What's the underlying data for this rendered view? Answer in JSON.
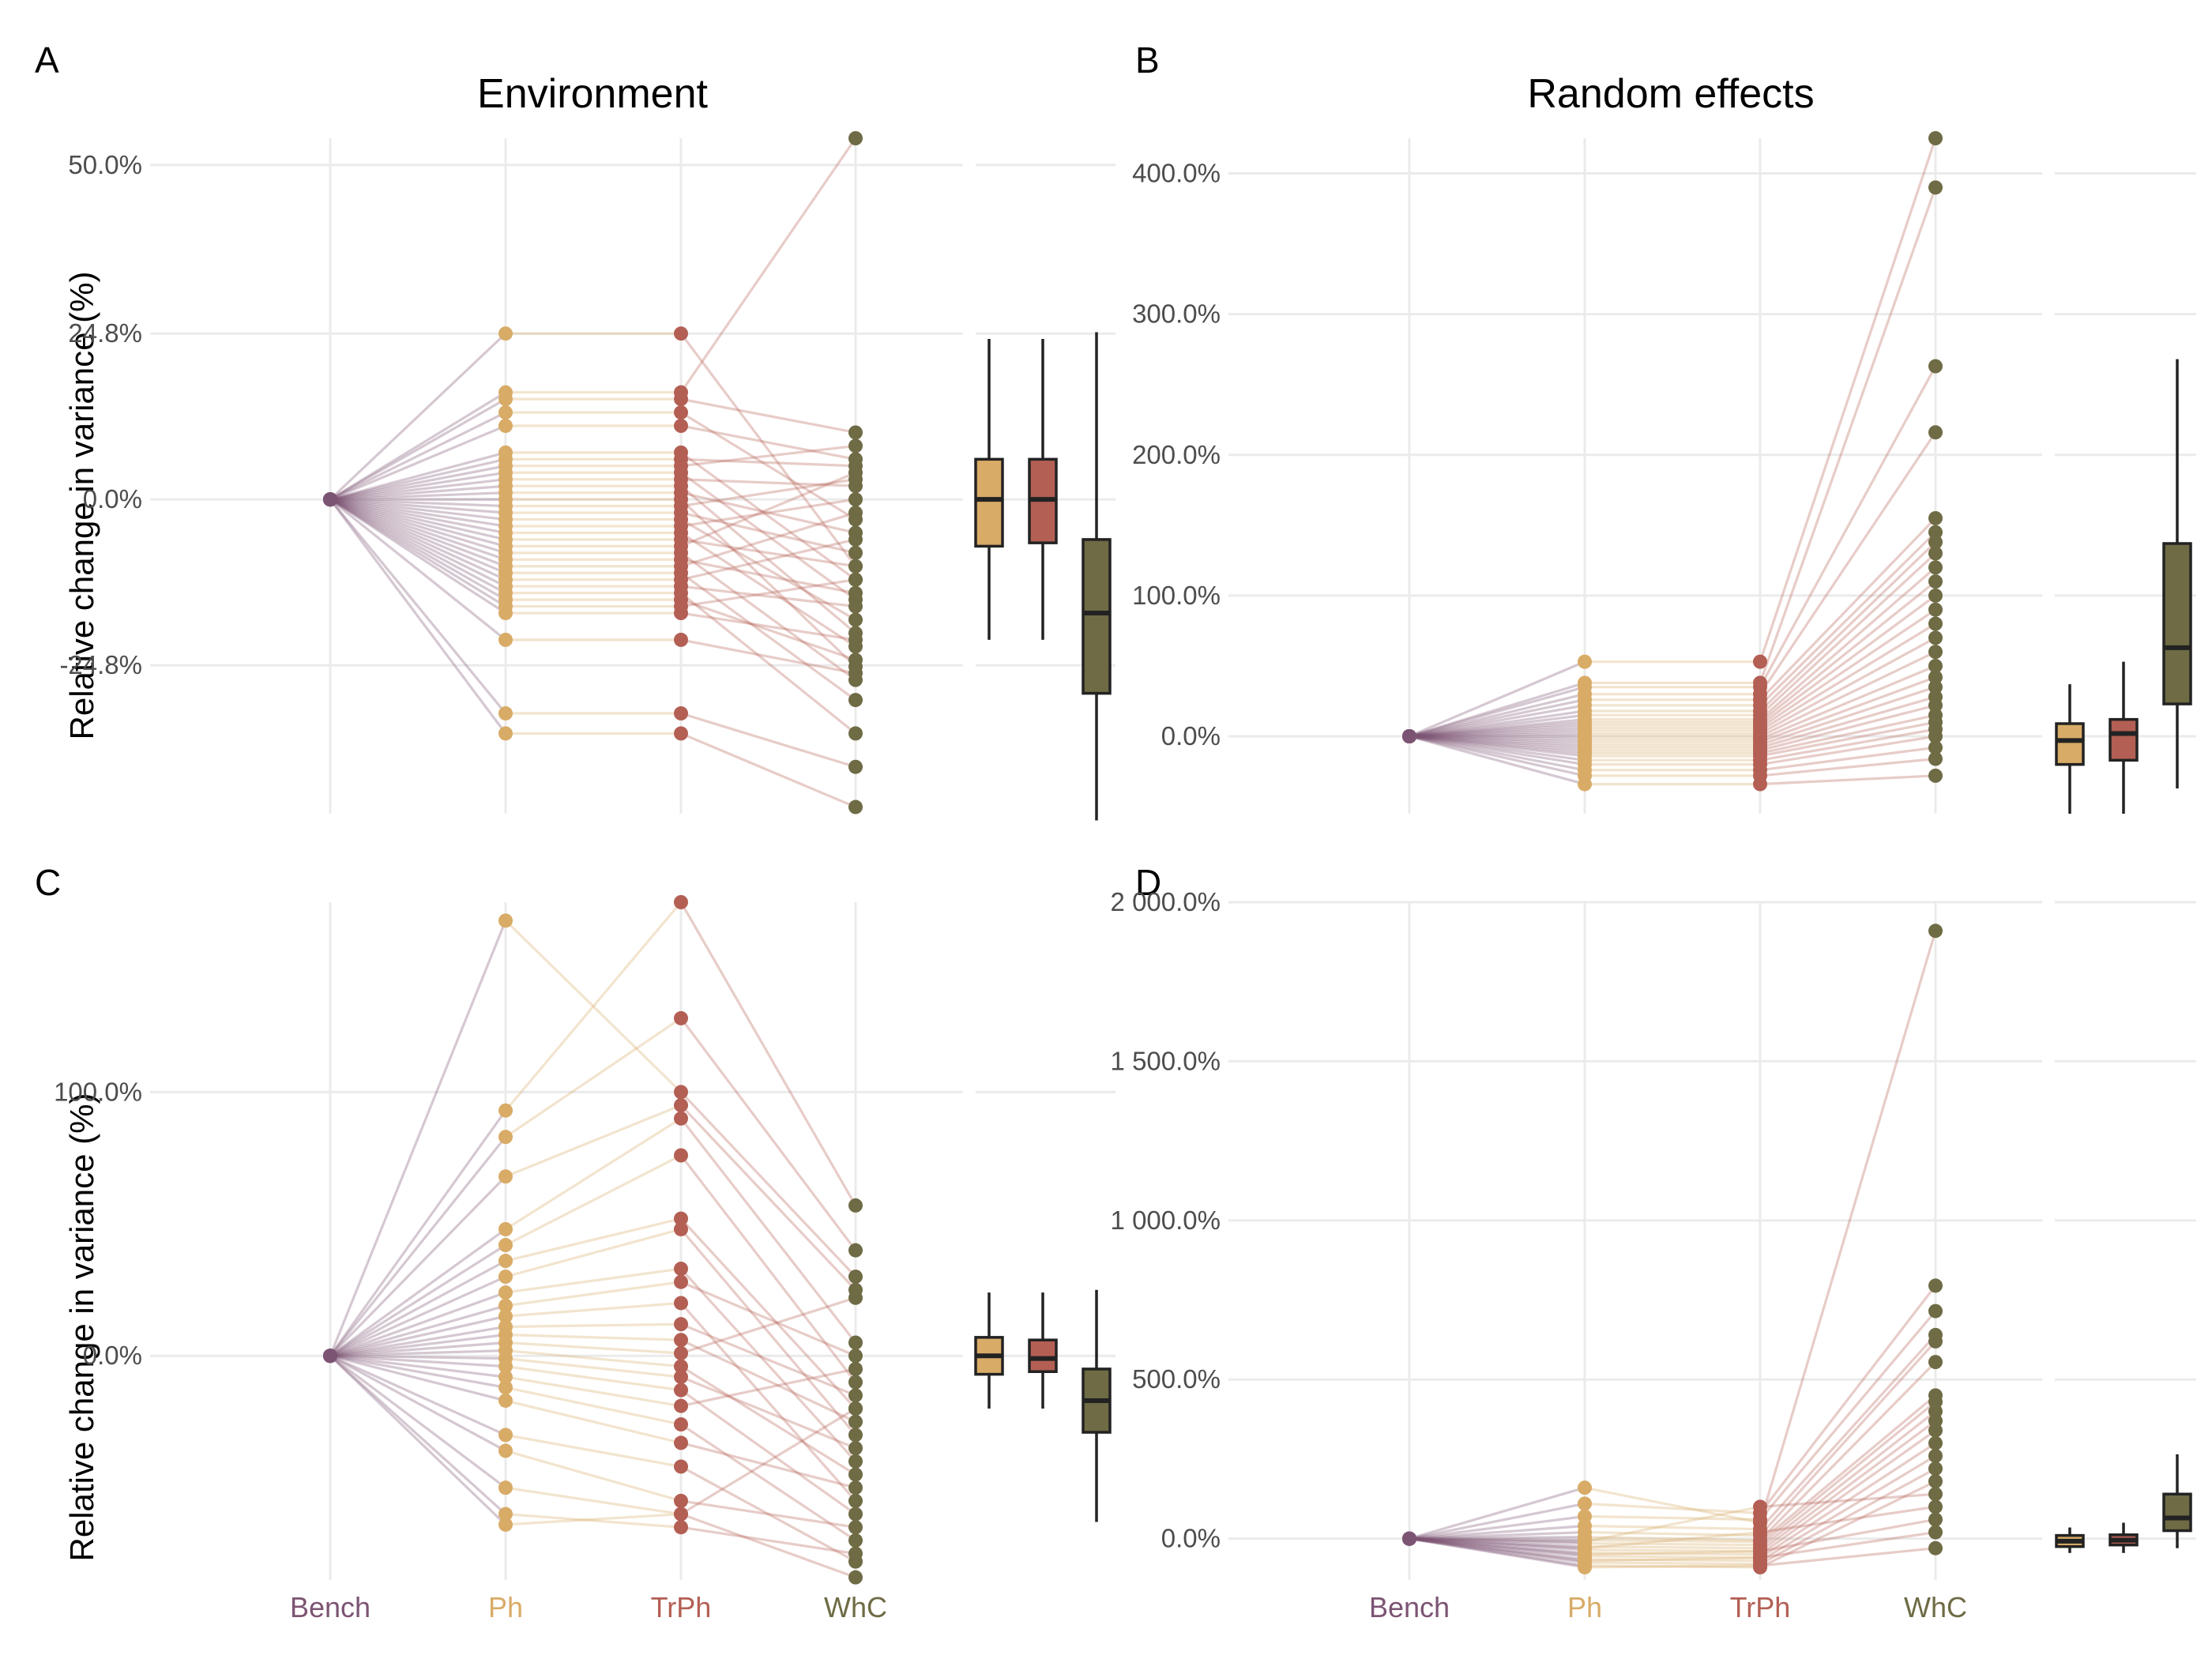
{
  "colors": {
    "bench": "#7c5473",
    "ph": "#d8ab67",
    "trph": "#b35f54",
    "whc": "#6e6b45",
    "grid": "#ebebeb",
    "tick_text": "#4d4d4d",
    "box_outline": "#222222"
  },
  "categories": [
    "Bench",
    "Ph",
    "TrPh",
    "WhC"
  ],
  "column_titles": {
    "left": "Environment",
    "right": "Random effects"
  },
  "chart_data": [
    {
      "panel": "A",
      "type": "line",
      "title": "Environment",
      "ylabel": "Relative change in variance (%)",
      "categories": [
        "Bench",
        "Ph",
        "TrPh",
        "WhC"
      ],
      "ylim": [
        -47,
        54
      ],
      "yticks": [
        -24.8,
        0,
        24.8,
        50
      ],
      "ytick_labels": [
        "-24.8%",
        "0.0%",
        "24.8%",
        "50.0%"
      ],
      "series": [
        {
          "values": [
            0,
            24.8,
            24.8,
            -10
          ]
        },
        {
          "values": [
            0,
            16,
            16,
            54
          ]
        },
        {
          "values": [
            0,
            15,
            15,
            10
          ]
        },
        {
          "values": [
            0,
            13,
            13,
            -3
          ]
        },
        {
          "values": [
            0,
            11,
            11,
            6
          ]
        },
        {
          "values": [
            0,
            7,
            7,
            -12
          ]
        },
        {
          "values": [
            0,
            6,
            6,
            5
          ]
        },
        {
          "values": [
            0,
            5,
            5,
            8
          ]
        },
        {
          "values": [
            0,
            4,
            4,
            -15
          ]
        },
        {
          "values": [
            0,
            3,
            3,
            2
          ]
        },
        {
          "values": [
            0,
            2,
            2,
            -20
          ]
        },
        {
          "values": [
            0,
            1,
            1,
            -5
          ]
        },
        {
          "values": [
            0,
            0,
            0,
            -25
          ]
        },
        {
          "values": [
            0,
            -1,
            -1,
            3
          ]
        },
        {
          "values": [
            0,
            -2,
            -2,
            -8
          ]
        },
        {
          "values": [
            0,
            -3,
            -3,
            -18
          ]
        },
        {
          "values": [
            0,
            -4,
            -4,
            0
          ]
        },
        {
          "values": [
            0,
            -5,
            -5,
            -22
          ]
        },
        {
          "values": [
            0,
            -6,
            -6,
            -10
          ]
        },
        {
          "values": [
            0,
            -7,
            -7,
            4
          ]
        },
        {
          "values": [
            0,
            -8,
            -8,
            -27
          ]
        },
        {
          "values": [
            0,
            -9,
            -9,
            -14
          ]
        },
        {
          "values": [
            0,
            -10,
            -10,
            -2
          ]
        },
        {
          "values": [
            0,
            -11,
            -11,
            -30
          ]
        },
        {
          "values": [
            0,
            -12,
            -12,
            -6
          ]
        },
        {
          "values": [
            0,
            -13,
            -13,
            -16
          ]
        },
        {
          "values": [
            0,
            -14,
            -14,
            -35
          ]
        },
        {
          "values": [
            0,
            -15,
            -15,
            -24
          ]
        },
        {
          "values": [
            0,
            -16,
            -16,
            -12
          ]
        },
        {
          "values": [
            0,
            -17,
            -17,
            -21
          ]
        },
        {
          "values": [
            0,
            -21,
            -21,
            -26
          ]
        },
        {
          "values": [
            0,
            -32,
            -32,
            -40
          ]
        },
        {
          "values": [
            0,
            -35,
            -35,
            -46
          ]
        }
      ],
      "boxplots": [
        {
          "category": "Ph",
          "min": -21,
          "q1": -7,
          "median": 0,
          "q3": 6,
          "max": 24
        },
        {
          "category": "TrPh",
          "min": -21,
          "q1": -6.5,
          "median": 0,
          "q3": 6,
          "max": 24
        },
        {
          "category": "WhC",
          "min": -48,
          "q1": -29,
          "median": -17,
          "q3": -6,
          "max": 25
        }
      ]
    },
    {
      "panel": "B",
      "type": "line",
      "title": "Random effects",
      "ylabel": "",
      "categories": [
        "Bench",
        "Ph",
        "TrPh",
        "WhC"
      ],
      "ylim": [
        -55,
        425
      ],
      "yticks": [
        0,
        100,
        200,
        300,
        400
      ],
      "ytick_labels": [
        "0.0%",
        "100.0%",
        "200.0%",
        "300.0%",
        "400.0%"
      ],
      "series": [
        {
          "values": [
            0,
            53,
            53,
            425
          ]
        },
        {
          "values": [
            0,
            38,
            38,
            390
          ]
        },
        {
          "values": [
            0,
            35,
            35,
            263
          ]
        },
        {
          "values": [
            0,
            30,
            30,
            216
          ]
        },
        {
          "values": [
            0,
            26,
            26,
            155
          ]
        },
        {
          "values": [
            0,
            22,
            22,
            145
          ]
        },
        {
          "values": [
            0,
            18,
            18,
            138
          ]
        },
        {
          "values": [
            0,
            15,
            15,
            130
          ]
        },
        {
          "values": [
            0,
            12,
            12,
            120
          ]
        },
        {
          "values": [
            0,
            10,
            10,
            110
          ]
        },
        {
          "values": [
            0,
            8,
            8,
            100
          ]
        },
        {
          "values": [
            0,
            6,
            6,
            90
          ]
        },
        {
          "values": [
            0,
            4,
            4,
            80
          ]
        },
        {
          "values": [
            0,
            2,
            2,
            70
          ]
        },
        {
          "values": [
            0,
            0,
            0,
            60
          ]
        },
        {
          "values": [
            0,
            -2,
            -2,
            50
          ]
        },
        {
          "values": [
            0,
            -4,
            -4,
            42
          ]
        },
        {
          "values": [
            0,
            -6,
            -6,
            35
          ]
        },
        {
          "values": [
            0,
            -8,
            -8,
            28
          ]
        },
        {
          "values": [
            0,
            -10,
            -10,
            22
          ]
        },
        {
          "values": [
            0,
            -12,
            -12,
            15
          ]
        },
        {
          "values": [
            0,
            -14,
            -14,
            10
          ]
        },
        {
          "values": [
            0,
            -17,
            -17,
            5
          ]
        },
        {
          "values": [
            0,
            -20,
            -20,
            0
          ]
        },
        {
          "values": [
            0,
            -24,
            -24,
            -8
          ]
        },
        {
          "values": [
            0,
            -28,
            -28,
            -16
          ]
        },
        {
          "values": [
            0,
            -34,
            -34,
            -28
          ]
        }
      ],
      "boxplots": [
        {
          "category": "Ph",
          "min": -55,
          "q1": -20,
          "median": -3,
          "q3": 9,
          "max": 37
        },
        {
          "category": "TrPh",
          "min": -55,
          "q1": -17,
          "median": 2,
          "q3": 12,
          "max": 53
        },
        {
          "category": "WhC",
          "min": -37,
          "q1": 23,
          "median": 63,
          "q3": 137,
          "max": 268
        }
      ]
    },
    {
      "panel": "C",
      "type": "line",
      "title": "",
      "ylabel": "Relative change in variance (%)",
      "categories": [
        "Bench",
        "Ph",
        "TrPh",
        "WhC"
      ],
      "ylim": [
        -85,
        172
      ],
      "yticks": [
        0,
        100
      ],
      "ytick_labels": [
        "0.0%",
        "100.0%"
      ],
      "series": [
        {
          "values": [
            0,
            165,
            100,
            30
          ]
        },
        {
          "values": [
            0,
            93,
            172,
            57
          ]
        },
        {
          "values": [
            0,
            83,
            128,
            40
          ]
        },
        {
          "values": [
            0,
            68,
            95,
            25
          ]
        },
        {
          "values": [
            0,
            48,
            90,
            5
          ]
        },
        {
          "values": [
            0,
            42,
            76,
            -10
          ]
        },
        {
          "values": [
            0,
            36,
            52,
            -20
          ]
        },
        {
          "values": [
            0,
            30,
            48,
            -30
          ]
        },
        {
          "values": [
            0,
            24,
            33,
            -40
          ]
        },
        {
          "values": [
            0,
            19,
            28,
            0
          ]
        },
        {
          "values": [
            0,
            15,
            20,
            -55
          ]
        },
        {
          "values": [
            0,
            11,
            12,
            -15
          ]
        },
        {
          "values": [
            0,
            8,
            6,
            -25
          ]
        },
        {
          "values": [
            0,
            5,
            1,
            22
          ]
        },
        {
          "values": [
            0,
            2,
            -4,
            -45
          ]
        },
        {
          "values": [
            0,
            -1,
            -8,
            -35
          ]
        },
        {
          "values": [
            0,
            -4,
            -13,
            -60
          ]
        },
        {
          "values": [
            0,
            -8,
            -19,
            -5
          ]
        },
        {
          "values": [
            0,
            -12,
            -26,
            -70
          ]
        },
        {
          "values": [
            0,
            -17,
            -33,
            -50
          ]
        },
        {
          "values": [
            0,
            -30,
            -42,
            -78
          ]
        },
        {
          "values": [
            0,
            -36,
            -55,
            -65
          ]
        },
        {
          "values": [
            0,
            -50,
            -60,
            -84
          ]
        },
        {
          "values": [
            0,
            -60,
            -65,
            -75
          ]
        },
        {
          "values": [
            0,
            -64,
            -60,
            -20
          ]
        }
      ],
      "boxplots": [
        {
          "category": "Ph",
          "min": -20,
          "q1": -7,
          "median": 0,
          "q3": 7,
          "max": 24
        },
        {
          "category": "TrPh",
          "min": -20,
          "q1": -6,
          "median": -1,
          "q3": 6,
          "max": 24
        },
        {
          "category": "WhC",
          "min": -63,
          "q1": -29,
          "median": -17,
          "q3": -5,
          "max": 25
        }
      ]
    },
    {
      "panel": "D",
      "type": "line",
      "title": "",
      "ylabel": "",
      "categories": [
        "Bench",
        "Ph",
        "TrPh",
        "WhC"
      ],
      "ylim": [
        -130,
        2000
      ],
      "yticks": [
        0,
        500,
        1000,
        1500,
        2000
      ],
      "ytick_labels": [
        "0.0%",
        "500.0%",
        "1 000.0%",
        "1 500.0%",
        "2 000.0%"
      ],
      "series": [
        {
          "values": [
            0,
            160,
            50,
            1910
          ]
        },
        {
          "values": [
            0,
            110,
            80,
            795
          ]
        },
        {
          "values": [
            0,
            70,
            60,
            715
          ]
        },
        {
          "values": [
            0,
            40,
            30,
            640
          ]
        },
        {
          "values": [
            0,
            20,
            10,
            620
          ]
        },
        {
          "values": [
            0,
            5,
            -5,
            555
          ]
        },
        {
          "values": [
            0,
            -5,
            -10,
            450
          ]
        },
        {
          "values": [
            0,
            -15,
            -20,
            430
          ]
        },
        {
          "values": [
            0,
            -25,
            -30,
            400
          ]
        },
        {
          "values": [
            0,
            -35,
            -40,
            370
          ]
        },
        {
          "values": [
            0,
            -45,
            -50,
            340
          ]
        },
        {
          "values": [
            0,
            -55,
            -60,
            300
          ]
        },
        {
          "values": [
            0,
            -65,
            -70,
            260
          ]
        },
        {
          "values": [
            0,
            -75,
            -80,
            220
          ]
        },
        {
          "values": [
            0,
            -85,
            -90,
            180
          ]
        },
        {
          "values": [
            0,
            -10,
            100,
            140
          ]
        },
        {
          "values": [
            0,
            -30,
            20,
            100
          ]
        },
        {
          "values": [
            0,
            -50,
            -40,
            60
          ]
        },
        {
          "values": [
            0,
            -70,
            -60,
            20
          ]
        },
        {
          "values": [
            0,
            -90,
            -85,
            -30
          ]
        }
      ],
      "boxplots": [
        {
          "category": "Ph",
          "min": -45,
          "q1": -25,
          "median": -8,
          "q3": 10,
          "max": 35
        },
        {
          "category": "TrPh",
          "min": -45,
          "q1": -20,
          "median": -5,
          "q3": 12,
          "max": 50
        },
        {
          "category": "WhC",
          "min": -30,
          "q1": 25,
          "median": 65,
          "q3": 140,
          "max": 265
        }
      ]
    }
  ]
}
